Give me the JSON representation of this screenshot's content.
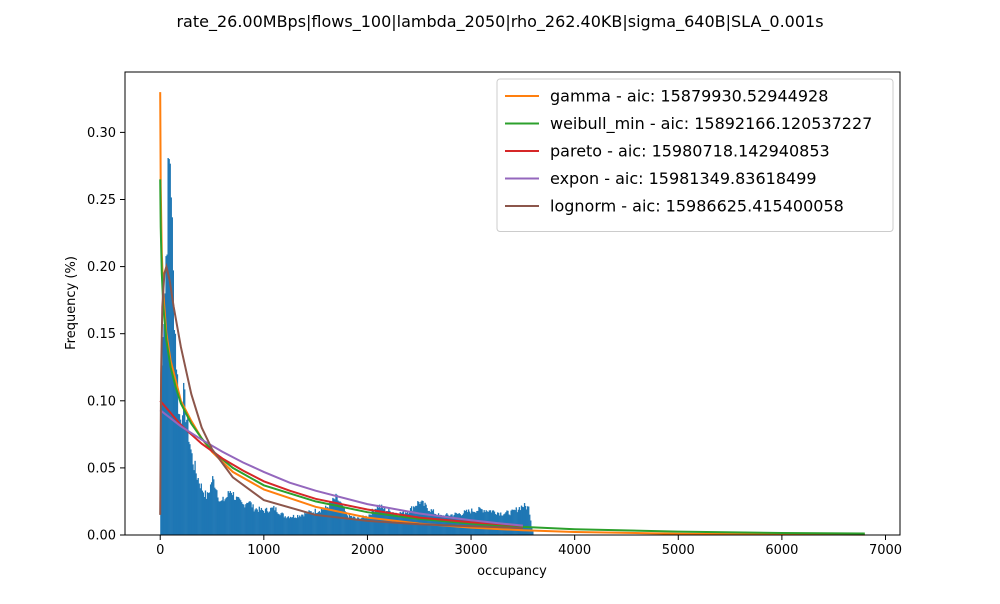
{
  "chart_data": {
    "type": "histogram",
    "title": "rate_26.00MBps|flows_100|lambda_2050|rho_262.40KB|sigma_640B|SLA_0.001s",
    "xlabel": "occupancy",
    "ylabel": "Frequency (%)",
    "xlim": [
      -340,
      7140
    ],
    "ylim": [
      0,
      0.345
    ],
    "x_ticks": [
      0,
      1000,
      2000,
      3000,
      4000,
      5000,
      6000,
      7000
    ],
    "y_ticks": [
      0.0,
      0.05,
      0.1,
      0.15,
      0.2,
      0.25,
      0.3
    ],
    "grid": false,
    "legend_position": "top-right",
    "histogram": {
      "color": "#1f77b4",
      "x_range": [
        0,
        3600
      ],
      "profile": [
        {
          "x": 0,
          "y": 0.018
        },
        {
          "x": 20,
          "y": 0.16
        },
        {
          "x": 40,
          "y": 0.17
        },
        {
          "x": 60,
          "y": 0.22
        },
        {
          "x": 80,
          "y": 0.27
        },
        {
          "x": 100,
          "y": 0.287
        },
        {
          "x": 120,
          "y": 0.2
        },
        {
          "x": 150,
          "y": 0.14
        },
        {
          "x": 180,
          "y": 0.09
        },
        {
          "x": 200,
          "y": 0.085
        },
        {
          "x": 220,
          "y": 0.105
        },
        {
          "x": 250,
          "y": 0.09
        },
        {
          "x": 300,
          "y": 0.06
        },
        {
          "x": 350,
          "y": 0.045
        },
        {
          "x": 400,
          "y": 0.035
        },
        {
          "x": 450,
          "y": 0.028
        },
        {
          "x": 480,
          "y": 0.035
        },
        {
          "x": 500,
          "y": 0.042
        },
        {
          "x": 530,
          "y": 0.038
        },
        {
          "x": 580,
          "y": 0.024
        },
        {
          "x": 640,
          "y": 0.028
        },
        {
          "x": 680,
          "y": 0.034
        },
        {
          "x": 720,
          "y": 0.028
        },
        {
          "x": 800,
          "y": 0.022
        },
        {
          "x": 850,
          "y": 0.026
        },
        {
          "x": 900,
          "y": 0.02
        },
        {
          "x": 1000,
          "y": 0.018
        },
        {
          "x": 1100,
          "y": 0.02
        },
        {
          "x": 1200,
          "y": 0.014
        },
        {
          "x": 1300,
          "y": 0.014
        },
        {
          "x": 1400,
          "y": 0.016
        },
        {
          "x": 1500,
          "y": 0.018
        },
        {
          "x": 1600,
          "y": 0.02
        },
        {
          "x": 1700,
          "y": 0.028
        },
        {
          "x": 1750,
          "y": 0.022
        },
        {
          "x": 1800,
          "y": 0.015
        },
        {
          "x": 1900,
          "y": 0.012
        },
        {
          "x": 2000,
          "y": 0.014
        },
        {
          "x": 2100,
          "y": 0.022
        },
        {
          "x": 2200,
          "y": 0.018
        },
        {
          "x": 2300,
          "y": 0.016
        },
        {
          "x": 2400,
          "y": 0.018
        },
        {
          "x": 2500,
          "y": 0.025
        },
        {
          "x": 2600,
          "y": 0.019
        },
        {
          "x": 2700,
          "y": 0.014
        },
        {
          "x": 2800,
          "y": 0.015
        },
        {
          "x": 2900,
          "y": 0.016
        },
        {
          "x": 3000,
          "y": 0.018
        },
        {
          "x": 3100,
          "y": 0.019
        },
        {
          "x": 3200,
          "y": 0.018
        },
        {
          "x": 3300,
          "y": 0.016
        },
        {
          "x": 3400,
          "y": 0.017
        },
        {
          "x": 3500,
          "y": 0.022
        },
        {
          "x": 3560,
          "y": 0.02
        },
        {
          "x": 3590,
          "y": 0.003
        }
      ]
    },
    "series": [
      {
        "name": "gamma - aic: 15879930.52944928",
        "color": "#ff7f0e",
        "points": [
          [
            0,
            0.33
          ],
          [
            5,
            0.26
          ],
          [
            15,
            0.21
          ],
          [
            30,
            0.18
          ],
          [
            60,
            0.15
          ],
          [
            100,
            0.13
          ],
          [
            150,
            0.115
          ],
          [
            200,
            0.1
          ],
          [
            300,
            0.085
          ],
          [
            400,
            0.072
          ],
          [
            500,
            0.062
          ],
          [
            700,
            0.047
          ],
          [
            1000,
            0.034
          ],
          [
            1500,
            0.021
          ],
          [
            2000,
            0.013
          ],
          [
            2500,
            0.0085
          ],
          [
            3000,
            0.0055
          ],
          [
            3500,
            0.0035
          ],
          [
            4000,
            0.0022
          ],
          [
            5000,
            0.001
          ],
          [
            6000,
            0.0005
          ],
          [
            6800,
            0.0003
          ]
        ]
      },
      {
        "name": "weibull_min - aic: 15892166.120537227",
        "color": "#2ca02c",
        "points": [
          [
            0,
            0.265
          ],
          [
            5,
            0.23
          ],
          [
            15,
            0.195
          ],
          [
            30,
            0.17
          ],
          [
            60,
            0.145
          ],
          [
            100,
            0.125
          ],
          [
            150,
            0.11
          ],
          [
            200,
            0.098
          ],
          [
            300,
            0.083
          ],
          [
            400,
            0.072
          ],
          [
            500,
            0.063
          ],
          [
            700,
            0.05
          ],
          [
            1000,
            0.037
          ],
          [
            1500,
            0.025
          ],
          [
            2000,
            0.017
          ],
          [
            2500,
            0.012
          ],
          [
            3000,
            0.0085
          ],
          [
            3500,
            0.006
          ],
          [
            4000,
            0.0043
          ],
          [
            5000,
            0.0025
          ],
          [
            6000,
            0.0015
          ],
          [
            6800,
            0.0011
          ]
        ]
      },
      {
        "name": "pareto - aic: 15980718.142940853",
        "color": "#d62728",
        "points": [
          [
            0,
            0.1
          ],
          [
            100,
            0.091
          ],
          [
            200,
            0.082
          ],
          [
            400,
            0.068
          ],
          [
            600,
            0.057
          ],
          [
            800,
            0.048
          ],
          [
            1000,
            0.04
          ],
          [
            1250,
            0.033
          ],
          [
            1500,
            0.027
          ],
          [
            2000,
            0.019
          ],
          [
            2500,
            0.013
          ],
          [
            3000,
            0.0095
          ],
          [
            3300,
            0.008
          ],
          [
            3500,
            0.007
          ]
        ]
      },
      {
        "name": "expon - aic: 15981349.83618499",
        "color": "#9467bd",
        "points": [
          [
            0,
            0.093
          ],
          [
            200,
            0.081
          ],
          [
            400,
            0.071
          ],
          [
            600,
            0.062
          ],
          [
            800,
            0.054
          ],
          [
            1000,
            0.047
          ],
          [
            1250,
            0.039
          ],
          [
            1500,
            0.033
          ],
          [
            2000,
            0.023
          ],
          [
            2500,
            0.016
          ],
          [
            3000,
            0.011
          ],
          [
            3300,
            0.0085
          ],
          [
            3500,
            0.007
          ]
        ]
      },
      {
        "name": "lognorm - aic: 15986625.415400058",
        "color": "#8c564b",
        "points": [
          [
            0,
            0.015
          ],
          [
            8,
            0.12
          ],
          [
            20,
            0.17
          ],
          [
            40,
            0.195
          ],
          [
            60,
            0.2
          ],
          [
            90,
            0.19
          ],
          [
            130,
            0.17
          ],
          [
            200,
            0.14
          ],
          [
            300,
            0.105
          ],
          [
            400,
            0.08
          ],
          [
            500,
            0.064
          ],
          [
            700,
            0.043
          ],
          [
            1000,
            0.026
          ],
          [
            1500,
            0.015
          ],
          [
            2000,
            0.0105
          ],
          [
            2500,
            0.008
          ],
          [
            3000,
            0.0065
          ],
          [
            3500,
            0.0052
          ]
        ]
      }
    ]
  }
}
